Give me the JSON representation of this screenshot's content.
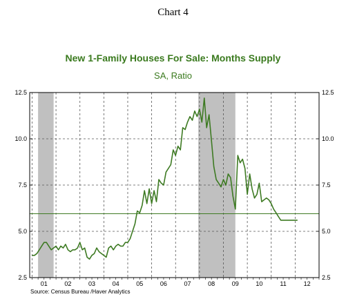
{
  "heading": "Chart 4",
  "source": "Source:  Census Bureau /Haver Analytics",
  "chart_data": {
    "type": "line",
    "title": "New 1-Family Houses For Sale: Months Supply",
    "subtitle": "SA, Ratio",
    "x_tick_labels": [
      "01",
      "02",
      "03",
      "04",
      "05",
      "06",
      "07",
      "08",
      "09",
      "10",
      "11",
      "12"
    ],
    "x_tick_years": [
      2001,
      2002,
      2003,
      2004,
      2005,
      2006,
      2007,
      2008,
      2009,
      2010,
      2011,
      2012
    ],
    "xlim": [
      2000.9,
      2013.0
    ],
    "ylim": [
      2.5,
      12.5
    ],
    "y_ticks": [
      2.5,
      5.0,
      7.5,
      10.0,
      12.5
    ],
    "y_tick_labels": [
      "2.5",
      "5.0",
      "7.5",
      "10.0",
      "12.5"
    ],
    "grid": true,
    "colors": {
      "line": "#3d7a22",
      "recession": "#c0c0c0",
      "reference": "#3d7a22"
    },
    "recessions": [
      [
        2001.25,
        2001.9
      ],
      [
        2007.95,
        2009.5
      ]
    ],
    "reference_line": 5.95,
    "series": [
      {
        "x": [
          2001.0,
          2001.1,
          2001.2,
          2001.3,
          2001.4,
          2001.5,
          2001.6,
          2001.7,
          2001.8,
          2001.9,
          2002.0,
          2002.1,
          2002.2,
          2002.3,
          2002.4,
          2002.5,
          2002.6,
          2002.7,
          2002.8,
          2002.9,
          2003.0,
          2003.1,
          2003.2,
          2003.3,
          2003.4,
          2003.5,
          2003.6,
          2003.7,
          2003.8,
          2003.9,
          2004.0,
          2004.1,
          2004.2,
          2004.3,
          2004.4,
          2004.5,
          2004.6,
          2004.7,
          2004.8,
          2004.9,
          2005.0,
          2005.1,
          2005.2,
          2005.3,
          2005.4,
          2005.5,
          2005.6,
          2005.7,
          2005.8,
          2005.9,
          2006.0,
          2006.1,
          2006.2,
          2006.3,
          2006.4,
          2006.5,
          2006.6,
          2006.7,
          2006.8,
          2006.9,
          2007.0,
          2007.1,
          2007.2,
          2007.3,
          2007.4,
          2007.5,
          2007.6,
          2007.7,
          2007.8,
          2007.9,
          2008.0,
          2008.1,
          2008.2,
          2008.3,
          2008.4,
          2008.5,
          2008.6,
          2008.7,
          2008.8,
          2008.9,
          2009.0,
          2009.1,
          2009.2,
          2009.3,
          2009.4,
          2009.5,
          2009.6,
          2009.7,
          2009.8,
          2009.9,
          2010.0,
          2010.1,
          2010.2,
          2010.3,
          2010.4,
          2010.5,
          2010.6,
          2010.7,
          2010.8,
          2010.9,
          2011.0,
          2011.1,
          2011.2,
          2011.3,
          2011.4,
          2011.5,
          2011.6,
          2011.7,
          2011.8,
          2011.9,
          2012.0,
          2012.1
        ],
        "values": [
          3.7,
          3.7,
          3.8,
          4.0,
          4.2,
          4.4,
          4.4,
          4.2,
          4.0,
          4.1,
          4.2,
          4.0,
          4.2,
          4.1,
          4.3,
          4.0,
          3.9,
          4.0,
          4.0,
          4.1,
          4.4,
          4.0,
          4.1,
          3.6,
          3.5,
          3.7,
          3.8,
          4.1,
          3.9,
          3.8,
          3.7,
          3.6,
          4.1,
          4.2,
          4.0,
          4.2,
          4.3,
          4.2,
          4.2,
          4.4,
          4.4,
          4.6,
          5.0,
          5.4,
          6.1,
          6.0,
          6.4,
          7.2,
          6.5,
          7.3,
          6.5,
          7.2,
          6.6,
          7.8,
          7.6,
          7.5,
          8.2,
          8.4,
          8.6,
          9.4,
          9.1,
          9.6,
          9.4,
          10.6,
          10.5,
          10.9,
          11.2,
          11.0,
          11.5,
          11.2,
          11.6,
          10.9,
          12.2,
          10.6,
          11.3,
          9.9,
          8.5,
          7.8,
          7.6,
          7.4,
          7.8,
          7.5,
          8.1,
          7.9,
          6.9,
          6.2,
          9.1,
          8.7,
          8.9,
          8.4,
          7.0,
          8.1,
          7.3,
          6.8,
          7.0,
          7.6,
          6.6,
          6.7,
          6.8,
          6.7,
          6.5,
          6.2,
          6.0,
          5.8,
          5.6,
          5.6,
          5.6,
          5.6,
          5.6,
          5.6,
          5.6,
          5.6
        ]
      }
    ]
  }
}
